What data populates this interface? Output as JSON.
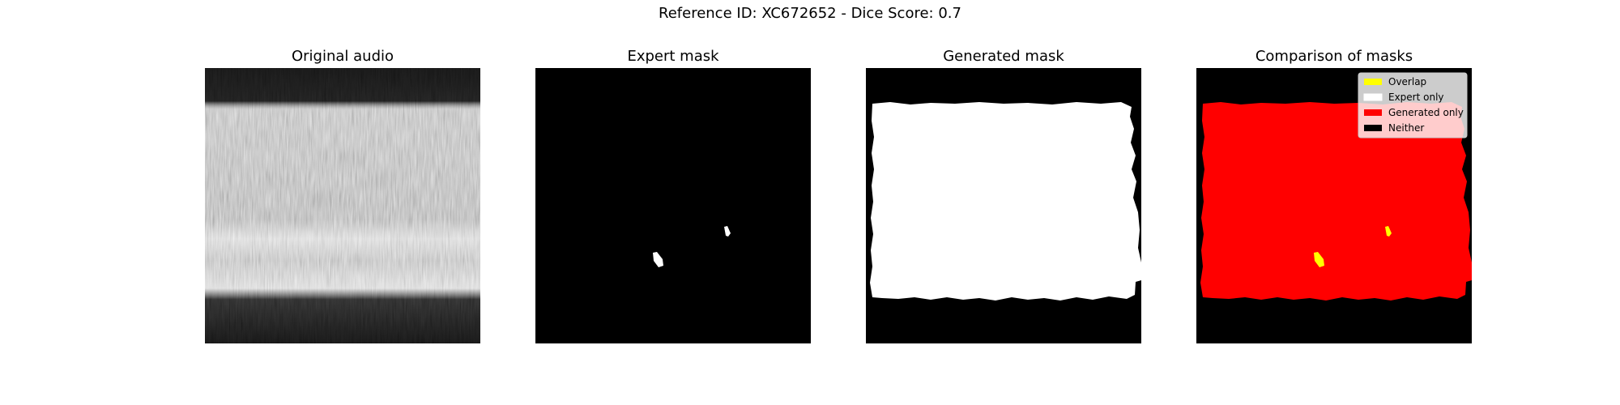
{
  "figure": {
    "suptitle": "Reference ID: XC672652 - Dice Score: 0.7"
  },
  "chart_data": [
    {
      "type": "heatmap",
      "title": "Original audio",
      "colormap": "gray",
      "axes_visible": false,
      "description_of_content": "spectrogram"
    },
    {
      "type": "heatmap",
      "title": "Expert mask",
      "colormap": "binary (white = mask, black = background)",
      "axes_visible": false
    },
    {
      "type": "heatmap",
      "title": "Generated mask",
      "colormap": "binary (white = mask, black = background)",
      "axes_visible": false
    },
    {
      "type": "heatmap",
      "title": "Comparison of masks",
      "axes_visible": false,
      "legend": {
        "placement": "top-right",
        "entries": [
          {
            "label": "Overlap",
            "color": "#ffff00"
          },
          {
            "label": "Expert only",
            "color": "#ffffff"
          },
          {
            "label": "Generated only",
            "color": "#ff0000"
          },
          {
            "label": "Neither",
            "color": "#000000"
          }
        ]
      }
    }
  ]
}
